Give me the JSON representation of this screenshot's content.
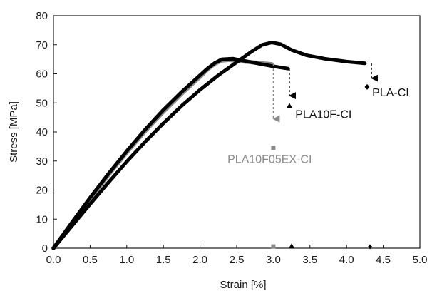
{
  "chart_data": {
    "type": "line",
    "title": "",
    "xlabel": "Strain [%]",
    "ylabel": "Stress [MPa]",
    "xlim": [
      0,
      5
    ],
    "ylim": [
      0,
      80
    ],
    "grid": false,
    "x_ticks": [
      "0.0",
      "0.5",
      "1.0",
      "1.5",
      "2.0",
      "2.5",
      "3.0",
      "3.5",
      "4.0",
      "4.5",
      "5.0"
    ],
    "y_ticks": [
      "0",
      "10",
      "20",
      "30",
      "40",
      "50",
      "60",
      "70",
      "80"
    ],
    "series": [
      {
        "name": "PLA10F05EX-CI",
        "color": "#8a8a8a",
        "points": [
          [
            0,
            0
          ],
          [
            0.25,
            8.5
          ],
          [
            0.5,
            17
          ],
          [
            0.75,
            25.2
          ],
          [
            1.0,
            33
          ],
          [
            1.25,
            40.3
          ],
          [
            1.5,
            47
          ],
          [
            1.75,
            53.2
          ],
          [
            2.0,
            59
          ],
          [
            2.1,
            61.5
          ],
          [
            2.2,
            63.5
          ],
          [
            2.3,
            64.6
          ],
          [
            2.4,
            64.8
          ],
          [
            2.55,
            64.4
          ],
          [
            2.7,
            64
          ],
          [
            2.85,
            63.6
          ],
          [
            2.98,
            63.3
          ]
        ],
        "failure": {
          "strain": 3.0,
          "stress": 34.5
        },
        "end_marker": {
          "strain": 3.0,
          "stress": 0.6
        },
        "label_position": {
          "strain": 2.95,
          "stress": 30.5
        }
      },
      {
        "name": "PLA10F-CI",
        "color": "#000000",
        "points": [
          [
            0,
            0
          ],
          [
            0.25,
            8.8
          ],
          [
            0.5,
            17.4
          ],
          [
            0.75,
            25.6
          ],
          [
            1.0,
            33.4
          ],
          [
            1.25,
            40.8
          ],
          [
            1.5,
            47.6
          ],
          [
            1.75,
            53.8
          ],
          [
            2.0,
            59.5
          ],
          [
            2.1,
            61.8
          ],
          [
            2.2,
            63.7
          ],
          [
            2.3,
            65
          ],
          [
            2.45,
            65.2
          ],
          [
            2.6,
            64.5
          ],
          [
            2.8,
            63.5
          ],
          [
            3.0,
            62.6
          ],
          [
            3.2,
            61.8
          ]
        ],
        "failure": {
          "strain": 3.22,
          "stress": 49
        },
        "end_marker": {
          "strain": 3.25,
          "stress": 0.7
        },
        "label_position": {
          "strain": 3.3,
          "stress": 46
        }
      },
      {
        "name": "PLA-CI",
        "color": "#000000",
        "points": [
          [
            0,
            0
          ],
          [
            0.25,
            7.6
          ],
          [
            0.5,
            15.2
          ],
          [
            0.75,
            22.6
          ],
          [
            1.0,
            29.8
          ],
          [
            1.25,
            36.6
          ],
          [
            1.5,
            43
          ],
          [
            1.75,
            49
          ],
          [
            2.0,
            54.5
          ],
          [
            2.25,
            59.5
          ],
          [
            2.5,
            64
          ],
          [
            2.7,
            67.6
          ],
          [
            2.85,
            70
          ],
          [
            2.98,
            70.8
          ],
          [
            3.1,
            70.2
          ],
          [
            3.25,
            68.2
          ],
          [
            3.45,
            66.4
          ],
          [
            3.7,
            65.2
          ],
          [
            4.0,
            64.2
          ],
          [
            4.25,
            63.6
          ]
        ],
        "failure": {
          "strain": 4.28,
          "stress": 55.5
        },
        "end_marker": {
          "strain": 4.32,
          "stress": 0.5
        },
        "label_position": {
          "strain": 4.35,
          "stress": 53.5
        }
      }
    ],
    "failure_arrows": [
      {
        "series": "PLA10F05EX-CI",
        "x": 3.0,
        "y_from": 63.3,
        "y_to": 44.5,
        "color": "#8a8a8a"
      },
      {
        "series": "PLA10F-CI",
        "x": 3.22,
        "y_from": 61.8,
        "y_to": 52.5,
        "color": "#000000"
      },
      {
        "series": "PLA-CI",
        "x": 4.34,
        "y_from": 63.6,
        "y_to": 58.5,
        "color": "#000000"
      }
    ]
  }
}
